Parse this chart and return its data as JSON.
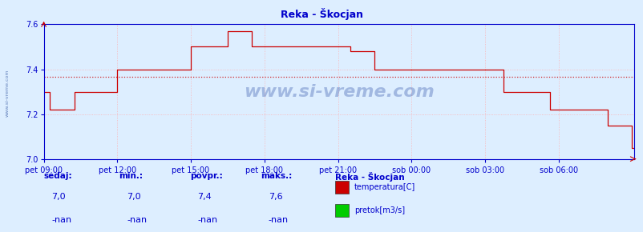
{
  "title": "Reka - Škocjan",
  "background_color": "#ddeeff",
  "plot_bg_color": "#ddeeff",
  "line_color": "#cc0000",
  "avg_line_color": "#cc0000",
  "grid_color": "#ffaaaa",
  "axis_color": "#0000cc",
  "text_color": "#0000cc",
  "ylim": [
    7.0,
    7.6
  ],
  "yticks": [
    7.0,
    7.2,
    7.4,
    7.6
  ],
  "xtick_labels": [
    "pet 09:00",
    "pet 12:00",
    "pet 15:00",
    "pet 18:00",
    "pet 21:00",
    "sob 00:00",
    "sob 03:00",
    "sob 06:00"
  ],
  "avg_value": 7.365,
  "watermark": "www.si-vreme.com",
  "legend_title": "Reka - Škocjan",
  "legend_items": [
    {
      "label": "temperatura[C]",
      "color": "#cc0000"
    },
    {
      "label": "pretok[m3/s]",
      "color": "#00cc00"
    }
  ],
  "stats_headers": [
    "sedaj:",
    "min.:",
    "povpr.:",
    "maks.:"
  ],
  "stats_temp": [
    "7,0",
    "7,0",
    "7,4",
    "7,6"
  ],
  "stats_pretok": [
    "-nan",
    "-nan",
    "-nan",
    "-nan"
  ],
  "n_points": 289,
  "tick_indices": [
    0,
    36,
    72,
    108,
    144,
    180,
    216,
    252
  ],
  "y_values": [
    7.3,
    7.3,
    7.3,
    7.22,
    7.22,
    7.22,
    7.22,
    7.22,
    7.22,
    7.22,
    7.22,
    7.22,
    7.22,
    7.22,
    7.22,
    7.3,
    7.3,
    7.3,
    7.3,
    7.3,
    7.3,
    7.3,
    7.3,
    7.3,
    7.3,
    7.3,
    7.3,
    7.3,
    7.3,
    7.3,
    7.3,
    7.3,
    7.3,
    7.3,
    7.3,
    7.3,
    7.4,
    7.4,
    7.4,
    7.4,
    7.4,
    7.4,
    7.4,
    7.4,
    7.4,
    7.4,
    7.4,
    7.4,
    7.4,
    7.4,
    7.4,
    7.4,
    7.4,
    7.4,
    7.4,
    7.4,
    7.4,
    7.4,
    7.4,
    7.4,
    7.4,
    7.4,
    7.4,
    7.4,
    7.4,
    7.4,
    7.4,
    7.4,
    7.4,
    7.4,
    7.4,
    7.4,
    7.5,
    7.5,
    7.5,
    7.5,
    7.5,
    7.5,
    7.5,
    7.5,
    7.5,
    7.5,
    7.5,
    7.5,
    7.5,
    7.5,
    7.5,
    7.5,
    7.5,
    7.5,
    7.57,
    7.57,
    7.57,
    7.57,
    7.57,
    7.57,
    7.57,
    7.57,
    7.57,
    7.57,
    7.57,
    7.57,
    7.5,
    7.5,
    7.5,
    7.5,
    7.5,
    7.5,
    7.5,
    7.5,
    7.5,
    7.5,
    7.5,
    7.5,
    7.5,
    7.5,
    7.5,
    7.5,
    7.5,
    7.5,
    7.5,
    7.5,
    7.5,
    7.5,
    7.5,
    7.5,
    7.5,
    7.5,
    7.5,
    7.5,
    7.5,
    7.5,
    7.5,
    7.5,
    7.5,
    7.5,
    7.5,
    7.5,
    7.5,
    7.5,
    7.5,
    7.5,
    7.5,
    7.5,
    7.5,
    7.5,
    7.5,
    7.5,
    7.5,
    7.5,
    7.48,
    7.48,
    7.48,
    7.48,
    7.48,
    7.48,
    7.48,
    7.48,
    7.48,
    7.48,
    7.48,
    7.48,
    7.4,
    7.4,
    7.4,
    7.4,
    7.4,
    7.4,
    7.4,
    7.4,
    7.4,
    7.4,
    7.4,
    7.4,
    7.4,
    7.4,
    7.4,
    7.4,
    7.4,
    7.4,
    7.4,
    7.4,
    7.4,
    7.4,
    7.4,
    7.4,
    7.4,
    7.4,
    7.4,
    7.4,
    7.4,
    7.4,
    7.4,
    7.4,
    7.4,
    7.4,
    7.4,
    7.4,
    7.4,
    7.4,
    7.4,
    7.4,
    7.4,
    7.4,
    7.4,
    7.4,
    7.4,
    7.4,
    7.4,
    7.4,
    7.4,
    7.4,
    7.4,
    7.4,
    7.4,
    7.4,
    7.4,
    7.4,
    7.4,
    7.4,
    7.4,
    7.4,
    7.4,
    7.4,
    7.4,
    7.3,
    7.3,
    7.3,
    7.3,
    7.3,
    7.3,
    7.3,
    7.3,
    7.3,
    7.3,
    7.3,
    7.3,
    7.3,
    7.3,
    7.3,
    7.3,
    7.3,
    7.3,
    7.3,
    7.3,
    7.3,
    7.3,
    7.3,
    7.22,
    7.22,
    7.22,
    7.22,
    7.22,
    7.22,
    7.22,
    7.22,
    7.22,
    7.22,
    7.22,
    7.22,
    7.22,
    7.22,
    7.22,
    7.22,
    7.22,
    7.22,
    7.22,
    7.22,
    7.22,
    7.22,
    7.22,
    7.22,
    7.22,
    7.22,
    7.22,
    7.22,
    7.15,
    7.15,
    7.15,
    7.15,
    7.15,
    7.15,
    7.15,
    7.15,
    7.15,
    7.15,
    7.15,
    7.15,
    7.05,
    7.05
  ]
}
